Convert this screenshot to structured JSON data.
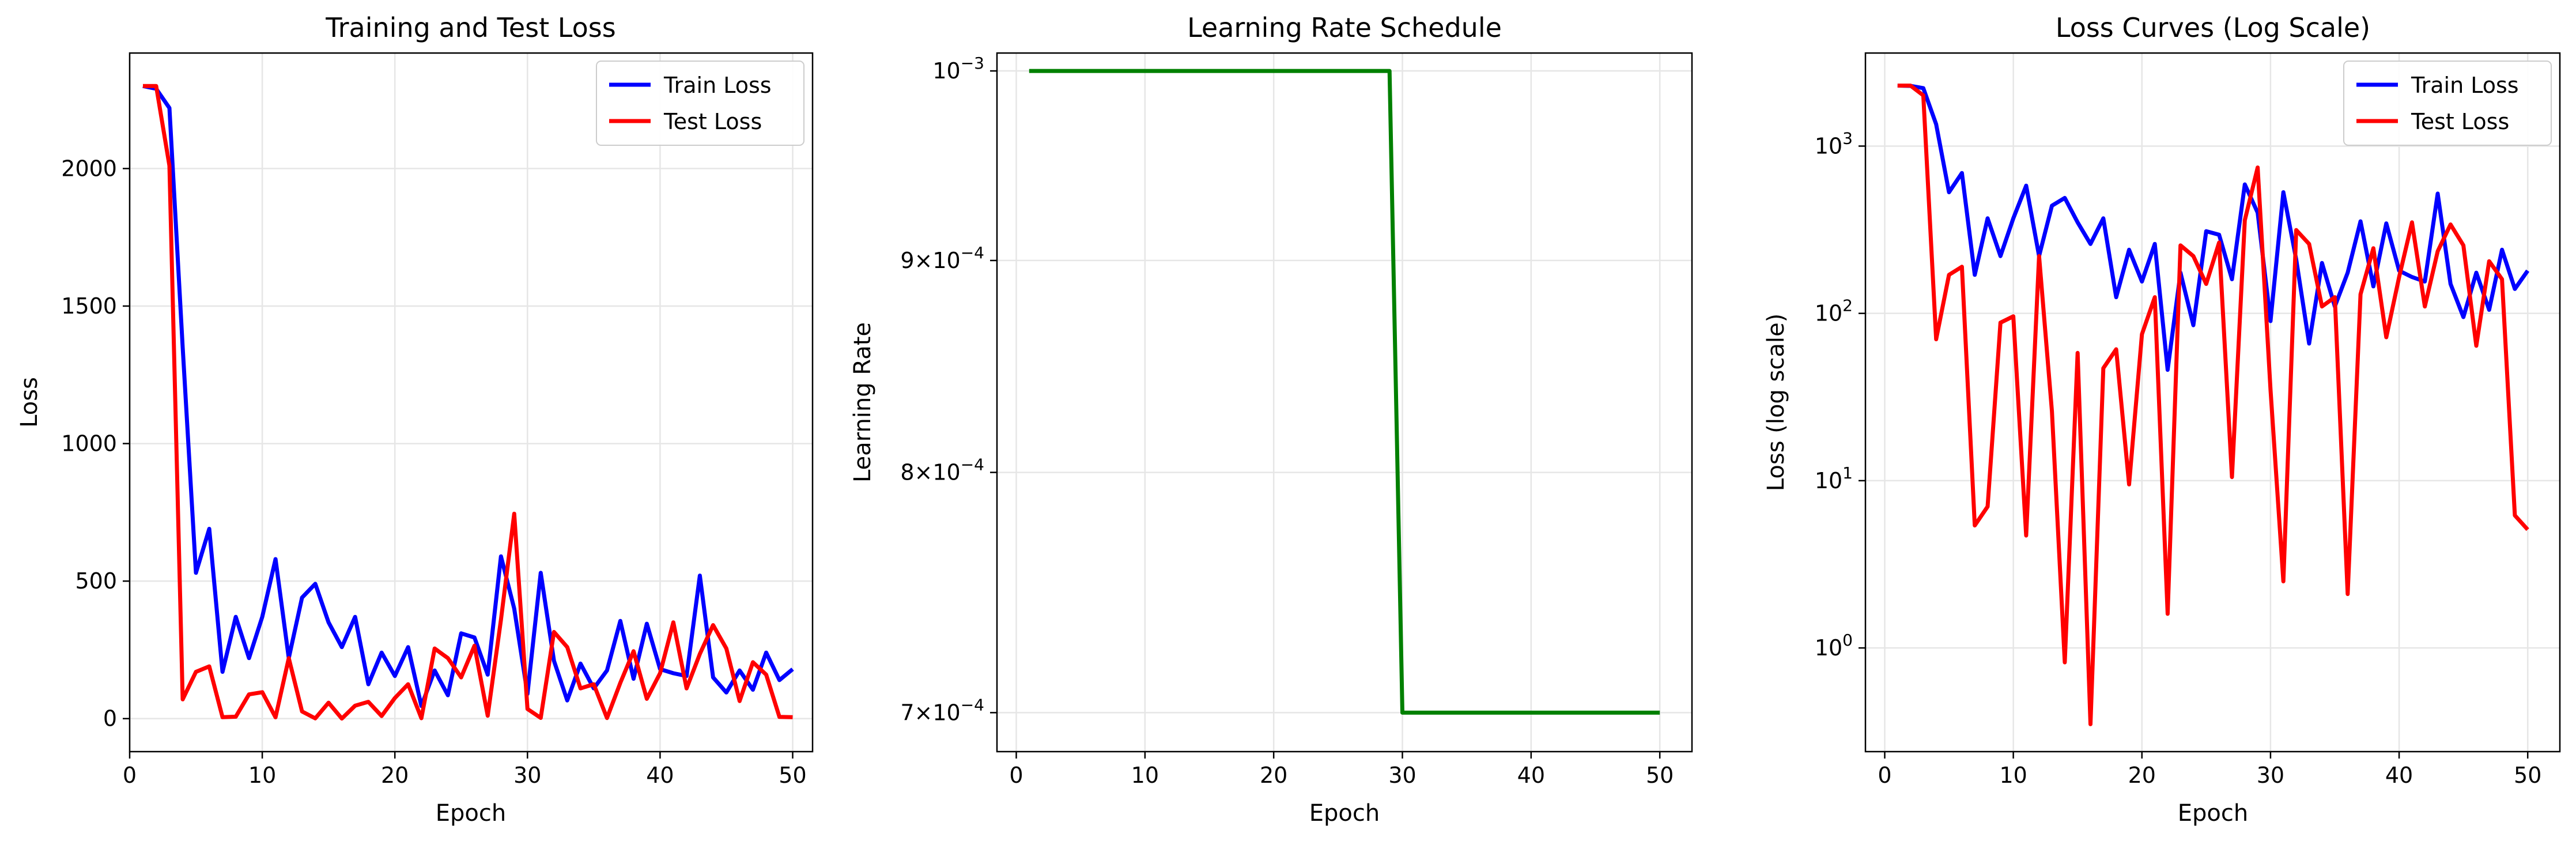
{
  "colors": {
    "train": "#0000ff",
    "test": "#ff0000",
    "lr": "#008000",
    "grid": "#e6e6e6"
  },
  "chart_data": [
    {
      "type": "line",
      "title": "Training and Test Loss",
      "xlabel": "Epoch",
      "ylabel": "Loss",
      "xlim": [
        0,
        51.5
      ],
      "ylim": [
        -120,
        2420
      ],
      "xticks": [
        0,
        10,
        20,
        30,
        40,
        50
      ],
      "xtick_labels": [
        "0",
        "10",
        "20",
        "30",
        "40",
        "50"
      ],
      "yticks": [
        0,
        500,
        1000,
        1500,
        2000
      ],
      "ytick_labels": [
        "0",
        "500",
        "1000",
        "1500",
        "2000"
      ],
      "grid": true,
      "legend_position": "top-right",
      "x": [
        1,
        2,
        3,
        4,
        5,
        6,
        7,
        8,
        9,
        10,
        11,
        12,
        13,
        14,
        15,
        16,
        17,
        18,
        19,
        20,
        21,
        22,
        23,
        24,
        25,
        26,
        27,
        28,
        29,
        30,
        31,
        32,
        33,
        34,
        35,
        36,
        37,
        38,
        39,
        40,
        41,
        42,
        43,
        44,
        45,
        46,
        47,
        48,
        49,
        50
      ],
      "series": [
        {
          "name": "Train Loss",
          "color": "#0000ff",
          "values": [
            2300,
            2290,
            2220,
            1350,
            530,
            690,
            170,
            370,
            220,
            370,
            580,
            220,
            440,
            490,
            350,
            260,
            370,
            125,
            240,
            155,
            260,
            46,
            175,
            85,
            310,
            295,
            160,
            590,
            400,
            90,
            530,
            210,
            66,
            200,
            110,
            175,
            355,
            145,
            345,
            180,
            165,
            155,
            520,
            150,
            95,
            175,
            105,
            240,
            140,
            180
          ]
        },
        {
          "name": "Test Loss",
          "color": "#ff0000",
          "values": [
            2300,
            2300,
            2010,
            70,
            170,
            190,
            5.4,
            7,
            88,
            96,
            4.7,
            220,
            26,
            0.82,
            58,
            0.35,
            47,
            61,
            9.5,
            75,
            125,
            1.6,
            255,
            220,
            150,
            265,
            10.5,
            360,
            745,
            35,
            2.5,
            315,
            260,
            110,
            125,
            2.1,
            130,
            245,
            72,
            165,
            350,
            110,
            235,
            340,
            255,
            64,
            205,
            160,
            6.2,
            5.1
          ]
        }
      ]
    },
    {
      "type": "line",
      "title": "Learning Rate Schedule",
      "xlabel": "Epoch",
      "ylabel": "Learning Rate",
      "xlim": [
        -1.5,
        52.5
      ],
      "ylim": [
        0.000685,
        0.00101
      ],
      "scale": "log",
      "xticks": [
        0,
        10,
        20,
        30,
        40,
        50
      ],
      "xtick_labels": [
        "0",
        "10",
        "20",
        "30",
        "40",
        "50"
      ],
      "yticks": [
        0.001,
        0.0009,
        0.0008,
        0.0007
      ],
      "ytick_labels": [
        {
          "mantissa": "",
          "exponent": "−3"
        },
        {
          "mantissa": "9",
          "exponent": "−4"
        },
        {
          "mantissa": "8",
          "exponent": "−4"
        },
        {
          "mantissa": "7",
          "exponent": "−4"
        }
      ],
      "grid": true,
      "x": [
        1,
        29,
        30,
        50
      ],
      "series": [
        {
          "name": "",
          "color": "#008000",
          "values": [
            0.001,
            0.001,
            0.0007,
            0.0007
          ]
        }
      ]
    },
    {
      "type": "line",
      "title": "Loss Curves (Log Scale)",
      "xlabel": "Epoch",
      "ylabel": "Loss (log scale)",
      "xlim": [
        -1.5,
        52.5
      ],
      "ylim": [
        0.24,
        3600
      ],
      "scale": "log",
      "xticks": [
        0,
        10,
        20,
        30,
        40,
        50
      ],
      "xtick_labels": [
        "0",
        "10",
        "20",
        "30",
        "40",
        "50"
      ],
      "yticks": [
        1,
        10,
        100,
        1000
      ],
      "ytick_labels": [
        {
          "mantissa": "",
          "exponent": "0"
        },
        {
          "mantissa": "",
          "exponent": "1"
        },
        {
          "mantissa": "",
          "exponent": "2"
        },
        {
          "mantissa": "",
          "exponent": "3"
        }
      ],
      "grid": true,
      "legend_position": "top-right",
      "x": [
        1,
        2,
        3,
        4,
        5,
        6,
        7,
        8,
        9,
        10,
        11,
        12,
        13,
        14,
        15,
        16,
        17,
        18,
        19,
        20,
        21,
        22,
        23,
        24,
        25,
        26,
        27,
        28,
        29,
        30,
        31,
        32,
        33,
        34,
        35,
        36,
        37,
        38,
        39,
        40,
        41,
        42,
        43,
        44,
        45,
        46,
        47,
        48,
        49,
        50
      ],
      "series": [
        {
          "name": "Train Loss",
          "color": "#0000ff",
          "values": [
            2300,
            2290,
            2220,
            1350,
            530,
            690,
            170,
            370,
            220,
            370,
            580,
            220,
            440,
            490,
            350,
            260,
            370,
            125,
            240,
            155,
            260,
            46,
            175,
            85,
            310,
            295,
            160,
            590,
            400,
            90,
            530,
            210,
            66,
            200,
            110,
            175,
            355,
            145,
            345,
            180,
            165,
            155,
            520,
            150,
            95,
            175,
            105,
            240,
            140,
            180
          ]
        },
        {
          "name": "Test Loss",
          "color": "#ff0000",
          "values": [
            2300,
            2300,
            2010,
            70,
            170,
            190,
            5.4,
            7,
            88,
            96,
            4.7,
            220,
            26,
            0.82,
            58,
            0.35,
            47,
            61,
            9.5,
            75,
            125,
            1.6,
            255,
            220,
            150,
            265,
            10.5,
            360,
            745,
            35,
            2.5,
            315,
            260,
            110,
            125,
            2.1,
            130,
            245,
            72,
            165,
            350,
            110,
            235,
            340,
            255,
            64,
            205,
            160,
            6.2,
            5.1
          ]
        }
      ]
    }
  ]
}
